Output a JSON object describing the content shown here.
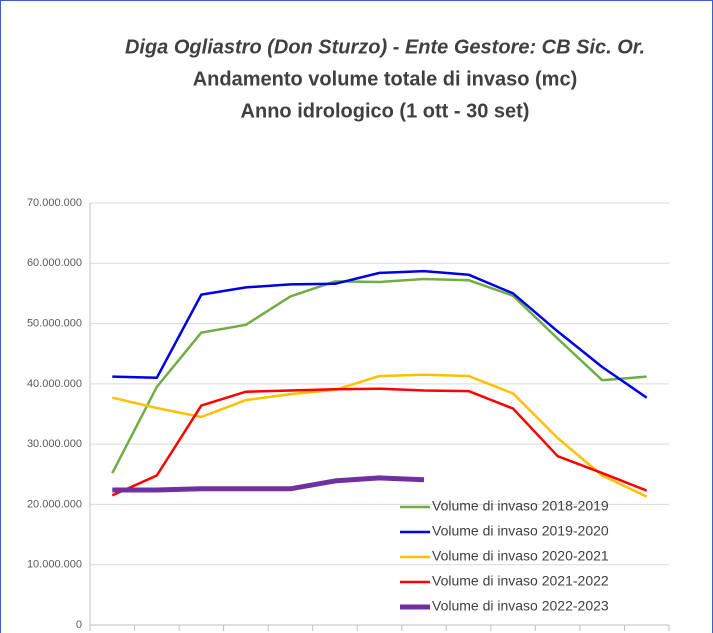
{
  "chart_data": {
    "type": "line",
    "title": "Diga Ogliastro (Don Sturzo)  - Ente Gestore: CB Sic. Or.",
    "subtitle": [
      "Andamento volume totale di invaso (mc)",
      "Anno idrologico (1 ott - 30 set)"
    ],
    "categories": [
      null,
      null,
      null,
      null,
      null,
      null,
      null,
      null,
      null,
      null,
      null,
      null,
      null
    ],
    "series": [
      {
        "name": "Volume di invaso 2018-2019",
        "color": "#70ad47",
        "line_width": 2.5,
        "values": [
          25200000,
          39500000,
          48500000,
          49800000,
          54500000,
          57000000,
          56900000,
          57400000,
          57200000,
          54600000,
          47500000,
          40600000,
          41200000
        ]
      },
      {
        "name": "Volume di invaso 2019-2020",
        "color": "#0000e6",
        "line_width": 2.5,
        "values": [
          41200000,
          41000000,
          54800000,
          56000000,
          56500000,
          56600000,
          58400000,
          58700000,
          58100000,
          55000000,
          48700000,
          42800000,
          37700000
        ]
      },
      {
        "name": "Volume di invaso 2020-2021",
        "color": "#ffc000",
        "line_width": 2.5,
        "values": [
          37700000,
          36000000,
          34500000,
          37300000,
          38300000,
          39000000,
          41300000,
          41500000,
          41300000,
          38400000,
          31000000,
          24800000,
          21300000
        ]
      },
      {
        "name": "Volume di invaso 2021-2022",
        "color": "#ff0000",
        "line_width": 2.5,
        "values": [
          21500000,
          24800000,
          36400000,
          38700000,
          38900000,
          39100000,
          39200000,
          38900000,
          38800000,
          35900000,
          28000000,
          25200000,
          22300000
        ]
      },
      {
        "name": "Volume di invaso 2022-2023",
        "color": "#7030a0",
        "line_width": 5,
        "values": [
          22400000,
          22400000,
          22600000,
          22600000,
          22600000,
          23900000,
          24400000,
          24100000,
          null,
          null,
          null,
          null,
          null
        ]
      }
    ],
    "ylim": [
      0,
      70000000
    ],
    "yticks": [
      0,
      {
        "value": 10000000,
        "label": "10.000.000"
      },
      {
        "value": 20000000,
        "label": "20.000.000"
      },
      {
        "value": 30000000,
        "label": "30.000.000"
      },
      {
        "value": 40000000,
        "label": "40.000.000"
      },
      {
        "value": 50000000,
        "label": "50.000.000"
      },
      {
        "value": 60000000,
        "label": "60.000.000"
      },
      {
        "value": 70000000,
        "label": "70.000.000"
      }
    ],
    "grid": true,
    "legend": "lower right"
  }
}
